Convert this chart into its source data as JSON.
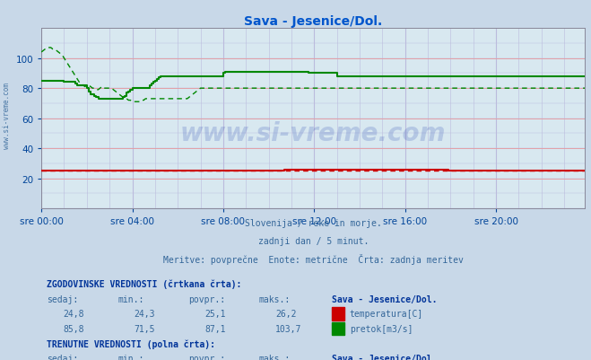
{
  "title": "Sava - Jesenice/Dol.",
  "title_color": "#0055cc",
  "bg_color": "#c8d8e8",
  "plot_bg_color": "#d8e8f0",
  "grid_color_h": "#ee9999",
  "grid_color_v": "#bbbbdd",
  "tick_color": "#004499",
  "red_color": "#cc0000",
  "green_color": "#008800",
  "xlim": [
    0,
    287
  ],
  "ylim": [
    0,
    120
  ],
  "ytick_vals": [
    20,
    40,
    60,
    80,
    100
  ],
  "ytick_labels": [
    "20",
    "40",
    "60",
    "80",
    "100"
  ],
  "xtick_positions": [
    0,
    48,
    96,
    144,
    192,
    240
  ],
  "xtick_labels": [
    "sre 00:00",
    "sre 04:00",
    "sre 08:00",
    "sre 12:00",
    "sre 16:00",
    "sre 20:00"
  ],
  "watermark_text": "www.si-vreme.com",
  "watermark_color": "#1133aa",
  "watermark_alpha": 0.18,
  "subtitle1": "Slovenija / reke in morje.",
  "subtitle2": "zadnji dan / 5 minut.",
  "subtitle3": "Meritve: povprečne  Enote: metrične  Črta: zadnja meritev",
  "subtitle_color": "#336699",
  "table_text_color": "#336699",
  "table_bold_color": "#003399",
  "left_watermark": "www.si-vreme.com",
  "left_wm_color": "#336699",
  "flow_solid": [
    85,
    85,
    85,
    85,
    85,
    85,
    85,
    85,
    85,
    85,
    85,
    85,
    84,
    84,
    84,
    84,
    84,
    84,
    83,
    82,
    82,
    82,
    82,
    82,
    80,
    78,
    76,
    76,
    75,
    74,
    73,
    73,
    73,
    73,
    73,
    73,
    73,
    73,
    73,
    73,
    73,
    73,
    73,
    74,
    75,
    77,
    78,
    79,
    80,
    80,
    80,
    80,
    80,
    80,
    80,
    80,
    80,
    82,
    83,
    84,
    85,
    86,
    87,
    88,
    88,
    88,
    88,
    88,
    88,
    88,
    88,
    88,
    88,
    88,
    88,
    88,
    88,
    88,
    88,
    88,
    88,
    88,
    88,
    88,
    88,
    88,
    88,
    88,
    88,
    88,
    88,
    88,
    88,
    88,
    88,
    88,
    90,
    91,
    91,
    91,
    91,
    91,
    91,
    91,
    91,
    91,
    91,
    91,
    91,
    91,
    91,
    91,
    91,
    91,
    91,
    91,
    91,
    91,
    91,
    91,
    91,
    91,
    91,
    91,
    91,
    91,
    91,
    91,
    91,
    91,
    91,
    91,
    91,
    91,
    91,
    91,
    91,
    91,
    91,
    91,
    91,
    90,
    90,
    90,
    90,
    90,
    90,
    90,
    90,
    90,
    90,
    90,
    90,
    90,
    90,
    90,
    88,
    88,
    88,
    88,
    88,
    88,
    88,
    88,
    88,
    88,
    88,
    88,
    88,
    88,
    88,
    88,
    88,
    88,
    88,
    88,
    88,
    88,
    88,
    88,
    88,
    88,
    88,
    88,
    88,
    88,
    88,
    88,
    88,
    88,
    88,
    88,
    88,
    88,
    88,
    88,
    88,
    88,
    88,
    88,
    88,
    88,
    88,
    88,
    88,
    88,
    88,
    88,
    88,
    88,
    88,
    88,
    88,
    88,
    88,
    88,
    88,
    88,
    88,
    88,
    88,
    88,
    88,
    88,
    88,
    88,
    88,
    88,
    88,
    88,
    88,
    88,
    88,
    88,
    88,
    88,
    88,
    88,
    88,
    88,
    88,
    88,
    88,
    88,
    88,
    88,
    88,
    88,
    88,
    88,
    88,
    88,
    88,
    88,
    88,
    88,
    88,
    88,
    88,
    88,
    88,
    88,
    88,
    88,
    88,
    88,
    88,
    88,
    88,
    88,
    88,
    88,
    88,
    88,
    88,
    88,
    88,
    88,
    88,
    88,
    88,
    88,
    88,
    88,
    88,
    88,
    88,
    88
  ],
  "flow_dashed": [
    104,
    105,
    106,
    107,
    107,
    107,
    106,
    106,
    105,
    104,
    103,
    102,
    100,
    98,
    96,
    94,
    92,
    90,
    88,
    86,
    84,
    83,
    82,
    81,
    82,
    82,
    81,
    80,
    80,
    79,
    79,
    80,
    81,
    80,
    80,
    80,
    80,
    80,
    79,
    78,
    77,
    76,
    75,
    74,
    73,
    73,
    72,
    72,
    71,
    71,
    71,
    71,
    71,
    72,
    72,
    73,
    73,
    73,
    73,
    73,
    73,
    73,
    73,
    73,
    73,
    73,
    73,
    73,
    73,
    73,
    73,
    73,
    73,
    73,
    73,
    73,
    73,
    73,
    74,
    75,
    76,
    77,
    78,
    79,
    80,
    80,
    80,
    80,
    80,
    80,
    80,
    80,
    80,
    80,
    80,
    80,
    80,
    80,
    80,
    80,
    80,
    80,
    80,
    80,
    80,
    80,
    80,
    80,
    80,
    80,
    80,
    80,
    80,
    80,
    80,
    80,
    80,
    80,
    80,
    80,
    80,
    80,
    80,
    80,
    80,
    80,
    80,
    80,
    80,
    80,
    80,
    80,
    80,
    80,
    80,
    80,
    80,
    80,
    80,
    80,
    80,
    80,
    80,
    80,
    80,
    80,
    80,
    80,
    80,
    80,
    80,
    80,
    80,
    80,
    80,
    80,
    80,
    80,
    80,
    80,
    80,
    80,
    80,
    80,
    80,
    80,
    80,
    80,
    80,
    80,
    80,
    80,
    80,
    80,
    80,
    80,
    80,
    80,
    80,
    80,
    80,
    80,
    80,
    80,
    80,
    80,
    80,
    80,
    80,
    80,
    80,
    80,
    80,
    80,
    80,
    80,
    80,
    80,
    80,
    80,
    80,
    80,
    80,
    80,
    80,
    80,
    80,
    80,
    80,
    80,
    80,
    80,
    80,
    80,
    80,
    80,
    80,
    80,
    80,
    80,
    80,
    80,
    80,
    80,
    80,
    80,
    80,
    80,
    80,
    80,
    80,
    80,
    80,
    80,
    80,
    80,
    80,
    80,
    80,
    80,
    80,
    80,
    80,
    80,
    80,
    80,
    80,
    80,
    80,
    80,
    80,
    80,
    80,
    80,
    80,
    80,
    80,
    80,
    80,
    80,
    80,
    80,
    80,
    80,
    80,
    80,
    80,
    80,
    80,
    80,
    80,
    80,
    80,
    80,
    80,
    80,
    80,
    80,
    80,
    80,
    80,
    80,
    80,
    80,
    80,
    80,
    80,
    80
  ],
  "temp_solid": [
    25,
    25,
    25,
    25,
    25,
    25,
    25,
    25,
    25,
    25,
    25,
    25,
    25,
    25,
    25,
    25,
    25,
    25,
    25,
    25,
    25,
    25,
    25,
    25,
    25,
    25,
    25,
    25,
    25,
    25,
    25,
    25,
    25,
    25,
    25,
    25,
    25,
    25,
    25,
    25,
    25,
    25,
    25,
    25,
    25,
    25,
    25,
    25,
    25,
    25,
    25,
    25,
    25,
    25,
    25,
    25,
    25,
    25,
    25,
    25,
    25,
    25,
    25,
    25,
    25,
    25,
    25,
    25,
    25,
    25,
    25,
    25,
    25,
    25,
    25,
    25,
    25,
    25,
    25,
    25,
    25,
    25,
    25,
    25,
    25,
    25,
    25,
    25,
    25,
    25,
    25,
    25,
    25,
    25,
    25,
    25,
    25,
    25,
    25,
    25,
    25,
    25,
    25,
    25,
    25,
    25,
    25,
    25,
    25,
    25,
    25,
    25,
    25,
    25,
    25,
    25,
    25,
    25,
    25,
    25,
    25,
    25,
    25,
    25,
    25,
    25,
    25,
    25,
    26,
    26,
    26,
    26,
    26,
    26,
    26,
    26,
    26,
    26,
    26,
    26,
    26,
    26,
    26,
    26,
    26,
    26,
    26,
    26,
    26,
    26,
    26,
    26,
    26,
    26,
    26,
    26,
    26,
    26,
    26,
    26,
    26,
    26,
    26,
    26,
    26,
    26,
    26,
    26,
    26,
    26,
    26,
    26,
    26,
    26,
    26,
    26,
    26,
    26,
    26,
    26,
    26,
    26,
    26,
    26,
    26,
    26,
    26,
    26,
    26,
    26,
    26,
    26,
    26,
    26,
    26,
    26,
    26,
    26,
    26,
    26,
    26,
    26,
    26,
    26,
    26,
    26,
    26,
    26,
    26,
    26,
    26,
    26,
    26,
    26,
    26,
    25,
    25,
    25,
    25,
    25,
    25,
    25,
    25,
    25,
    25,
    25,
    25,
    25,
    25,
    25,
    25,
    25,
    25,
    25,
    25,
    25,
    25,
    25,
    25,
    25,
    25,
    25,
    25,
    25,
    25,
    25,
    25,
    25,
    25,
    25,
    25,
    25,
    25,
    25,
    25,
    25,
    25,
    25,
    25,
    25,
    25,
    25,
    25,
    25,
    25,
    25,
    25,
    25,
    25,
    25,
    25,
    25,
    25,
    25,
    25,
    25,
    25,
    25,
    25,
    25,
    25,
    25,
    25,
    25,
    25,
    25,
    25,
    25
  ],
  "temp_dashed": [
    25,
    25,
    25,
    25,
    25,
    25,
    25,
    25,
    25,
    25,
    25,
    25,
    25,
    25,
    25,
    25,
    25,
    25,
    25,
    25,
    25,
    25,
    25,
    25,
    25,
    25,
    25,
    25,
    25,
    25,
    25,
    25,
    25,
    25,
    25,
    25,
    25,
    25,
    25,
    25,
    25,
    25,
    25,
    25,
    25,
    25,
    25,
    25,
    25,
    25,
    25,
    25,
    25,
    25,
    25,
    25,
    25,
    25,
    25,
    25,
    25,
    25,
    25,
    25,
    25,
    25,
    25,
    25,
    25,
    25,
    25,
    25,
    25,
    25,
    25,
    25,
    25,
    25,
    25,
    25,
    25,
    25,
    25,
    25,
    25,
    25,
    25,
    25,
    25,
    25,
    25,
    25,
    25,
    25,
    25,
    25,
    25,
    25,
    25,
    25,
    25,
    25,
    25,
    25,
    25,
    25,
    25,
    25,
    25,
    25,
    25,
    25,
    25,
    25,
    25,
    25,
    25,
    25,
    25,
    25,
    25,
    25,
    25,
    25,
    25,
    25,
    25,
    25,
    25,
    25,
    25,
    25,
    25,
    25,
    25,
    25,
    25,
    25,
    25,
    25,
    25,
    25,
    25,
    25,
    25,
    25,
    25,
    25,
    25,
    25,
    25,
    25,
    25,
    25,
    25,
    25,
    25,
    25,
    25,
    25,
    25,
    25,
    25,
    25,
    25,
    25,
    25,
    25,
    25,
    25,
    25,
    25,
    25,
    25,
    25,
    25,
    25,
    25,
    25,
    25,
    25,
    25,
    25,
    25,
    25,
    25,
    25,
    25,
    25,
    25,
    25,
    25,
    25,
    25,
    25,
    25,
    25,
    25,
    25,
    25,
    25,
    25,
    25,
    25,
    25,
    25,
    25,
    25,
    25,
    25,
    25,
    25,
    25,
    25,
    25,
    25,
    25,
    25,
    25,
    25,
    25,
    25,
    25,
    25,
    25,
    25,
    25,
    25,
    25,
    25,
    25,
    25,
    25,
    25,
    25,
    25,
    25,
    25,
    25,
    25,
    25,
    25,
    25,
    25,
    25,
    25,
    25,
    25,
    25,
    25,
    25,
    25,
    25,
    25,
    25,
    25,
    25,
    25,
    25,
    25,
    25,
    25,
    25,
    25,
    25,
    25,
    25,
    25,
    25,
    25,
    25,
    25,
    25,
    25,
    25,
    25,
    25,
    25,
    25,
    25,
    25,
    25,
    25,
    25,
    25,
    25,
    25,
    25
  ]
}
